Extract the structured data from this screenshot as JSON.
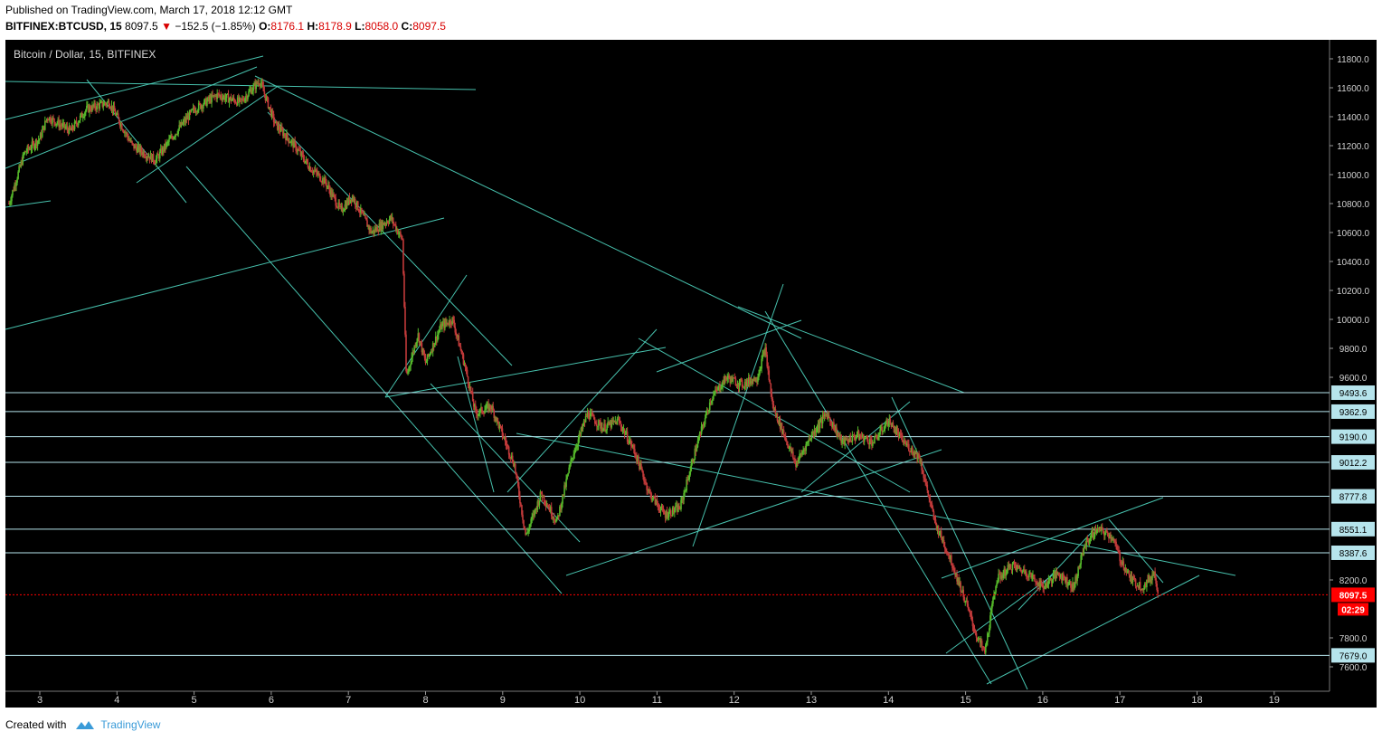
{
  "header": {
    "published": "Published on TradingView.com, March 17, 2018 12:12 GMT",
    "symbol": "BITFINEX:BTCUSD, 15",
    "last": "8097.5",
    "change": "−152.5 (−1.85%)",
    "o_label": "O:",
    "o": "8176.1",
    "h_label": "H:",
    "h": "8178.9",
    "l_label": "L:",
    "l": "8058.0",
    "c_label": "C:",
    "c": "8097.5"
  },
  "footer": {
    "created_with": "Created with",
    "brand": "TradingView"
  },
  "colors": {
    "background": "#000000",
    "drawing": "#4fd6c0",
    "level": "#b6e4ec",
    "up": "#55b82a",
    "down": "#c23a3a",
    "price_tag": "#ff0000"
  },
  "chart_data": {
    "type": "candlestick",
    "title": "Bitcoin / Dollar, 15, BITFINEX",
    "ylim": [
      7450,
      11900
    ],
    "y_ticks": [
      "11800.0",
      "11600.0",
      "11400.0",
      "11200.0",
      "11000.0",
      "10800.0",
      "10600.0",
      "10400.0",
      "10200.0",
      "10000.0",
      "9800.0",
      "9600.0",
      "8200.0",
      "7800.0",
      "7600.0"
    ],
    "x_ticks": [
      "3",
      "4",
      "5",
      "6",
      "7",
      "8",
      "9",
      "10",
      "11",
      "12",
      "13",
      "14",
      "15",
      "16",
      "17",
      "18",
      "19"
    ],
    "levels": [
      "9493.6",
      "9362.9",
      "9190.0",
      "9012.2",
      "8777.8",
      "8551.1",
      "8387.6",
      "7679.0"
    ],
    "current_price": "8097.5",
    "countdown": "02:29",
    "price_path": [
      [
        2.6,
        10800
      ],
      [
        2.8,
        11150
      ],
      [
        3.0,
        11250
      ],
      [
        3.1,
        11400
      ],
      [
        3.4,
        11300
      ],
      [
        3.6,
        11450
      ],
      [
        3.9,
        11500
      ],
      [
        4.2,
        11200
      ],
      [
        4.5,
        11100
      ],
      [
        4.7,
        11250
      ],
      [
        5.0,
        11450
      ],
      [
        5.3,
        11550
      ],
      [
        5.6,
        11500
      ],
      [
        5.85,
        11650
      ],
      [
        6.05,
        11350
      ],
      [
        6.3,
        11200
      ],
      [
        6.5,
        11050
      ],
      [
        6.7,
        10950
      ],
      [
        6.9,
        10750
      ],
      [
        7.05,
        10850
      ],
      [
        7.3,
        10600
      ],
      [
        7.55,
        10700
      ],
      [
        7.7,
        10550
      ],
      [
        7.75,
        9600
      ],
      [
        7.9,
        9900
      ],
      [
        8.0,
        9700
      ],
      [
        8.2,
        9950
      ],
      [
        8.35,
        10000
      ],
      [
        8.5,
        9700
      ],
      [
        8.65,
        9350
      ],
      [
        8.85,
        9400
      ],
      [
        9.0,
        9200
      ],
      [
        9.15,
        9000
      ],
      [
        9.3,
        8500
      ],
      [
        9.5,
        8800
      ],
      [
        9.7,
        8600
      ],
      [
        9.9,
        9050
      ],
      [
        10.1,
        9350
      ],
      [
        10.3,
        9250
      ],
      [
        10.5,
        9300
      ],
      [
        10.7,
        9100
      ],
      [
        10.9,
        8800
      ],
      [
        11.1,
        8650
      ],
      [
        11.3,
        8700
      ],
      [
        11.5,
        9100
      ],
      [
        11.7,
        9450
      ],
      [
        11.9,
        9600
      ],
      [
        12.1,
        9550
      ],
      [
        12.3,
        9600
      ],
      [
        12.4,
        9800
      ],
      [
        12.5,
        9400
      ],
      [
        12.65,
        9200
      ],
      [
        12.8,
        9000
      ],
      [
        13.0,
        9200
      ],
      [
        13.2,
        9350
      ],
      [
        13.4,
        9150
      ],
      [
        13.6,
        9200
      ],
      [
        13.8,
        9150
      ],
      [
        14.0,
        9300
      ],
      [
        14.2,
        9150
      ],
      [
        14.4,
        9050
      ],
      [
        14.6,
        8600
      ],
      [
        14.8,
        8350
      ],
      [
        15.0,
        8050
      ],
      [
        15.15,
        7800
      ],
      [
        15.25,
        7700
      ],
      [
        15.4,
        8200
      ],
      [
        15.6,
        8300
      ],
      [
        15.8,
        8250
      ],
      [
        16.0,
        8150
      ],
      [
        16.2,
        8250
      ],
      [
        16.4,
        8150
      ],
      [
        16.55,
        8450
      ],
      [
        16.7,
        8550
      ],
      [
        16.9,
        8500
      ],
      [
        17.0,
        8350
      ],
      [
        17.15,
        8200
      ],
      [
        17.3,
        8150
      ],
      [
        17.45,
        8250
      ],
      [
        17.5,
        8097.5
      ]
    ]
  }
}
